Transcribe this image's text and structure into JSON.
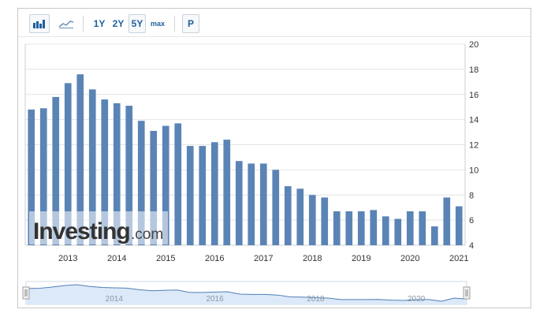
{
  "toolbar": {
    "bar_chart_icon": "bar-chart-icon",
    "line_chart_icon": "line-chart-icon",
    "ranges": [
      "1Y",
      "2Y",
      "5Y",
      "max"
    ],
    "active_range": "5Y",
    "print_label": "P"
  },
  "watermark": {
    "brand": "Investing",
    "suffix": ".com"
  },
  "colors": {
    "bar": "#5b84b6",
    "accent": "#1f5f9e",
    "navigator_fill": "#dce9f8",
    "navigator_line": "#4f7fb6"
  },
  "chart_data": {
    "type": "bar",
    "title": "",
    "xlabel": "",
    "ylabel": "",
    "ylim": [
      4,
      20
    ],
    "yticks": [
      4,
      6,
      8,
      10,
      12,
      14,
      16,
      18,
      20
    ],
    "y_axis_position": "right",
    "grid": true,
    "x_tick_labels": [
      "2013",
      "2014",
      "2015",
      "2016",
      "2017",
      "2018",
      "2019",
      "2020",
      "2021"
    ],
    "x_tick_positions": [
      3,
      7,
      11,
      15,
      19,
      23,
      27,
      31,
      35
    ],
    "values": [
      14.8,
      14.9,
      15.8,
      16.9,
      17.6,
      16.4,
      15.6,
      15.3,
      15.1,
      13.9,
      13.1,
      13.5,
      13.7,
      11.9,
      11.9,
      12.2,
      12.4,
      10.7,
      10.5,
      10.5,
      10.0,
      8.7,
      8.5,
      8.0,
      7.8,
      6.7,
      6.7,
      6.7,
      6.8,
      6.3,
      6.1,
      6.7,
      6.7,
      5.5,
      7.8,
      7.1
    ],
    "navigator": {
      "x_labels": [
        "2014",
        "2016",
        "2018",
        "2020"
      ]
    }
  }
}
